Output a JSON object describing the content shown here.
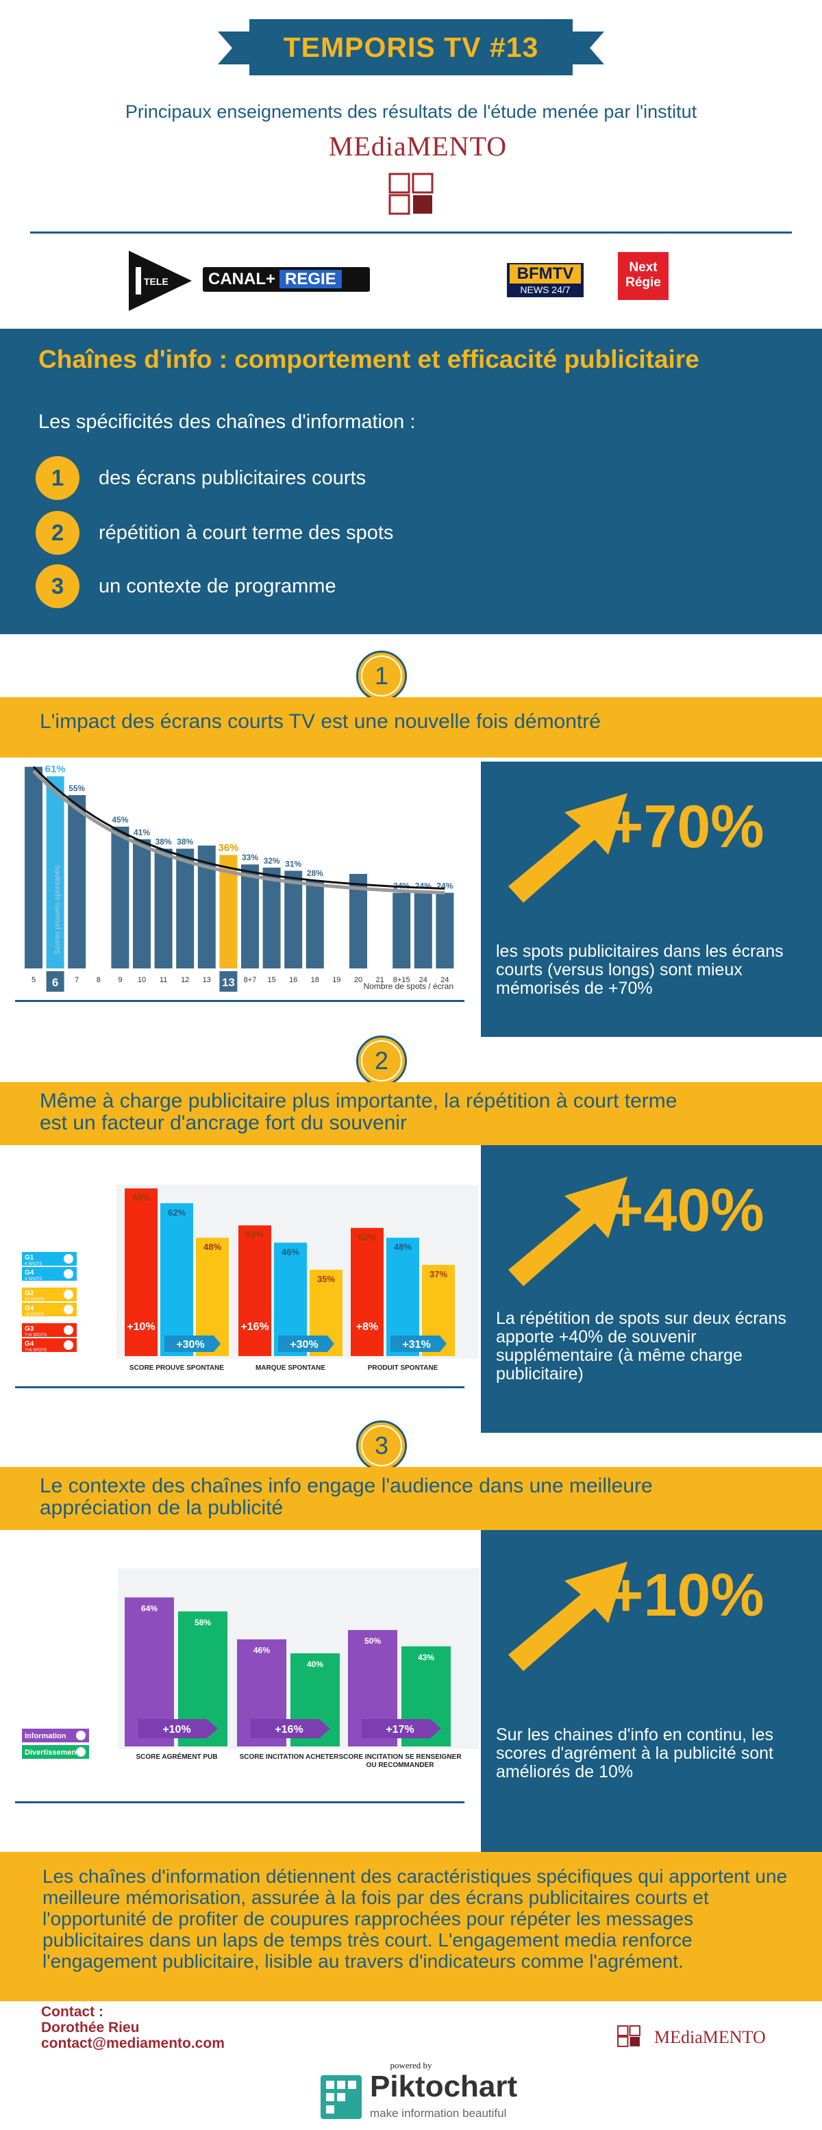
{
  "header": {
    "ribbon_title": "TEMPORIS TV #13",
    "intro": "Principaux enseignements des résultats de l'étude menée par l'institut",
    "institute_logo_text": "MEdiaMENTO"
  },
  "partner_logos": {
    "itele": "TELE",
    "canal_plus": "CANAL+",
    "canal_regie": "REGIE",
    "bfm_top": "BFMTV",
    "bfm_bottom": "NEWS 24/7",
    "next_regie": "Next Régie"
  },
  "intro_block": {
    "title": "Chaînes d'info : comportement et efficacité publicitaire",
    "subtitle": "Les spécificités des chaînes d'information :",
    "items": [
      {
        "num": "1",
        "text": "des écrans publicitaires courts"
      },
      {
        "num": "2",
        "text": "répétition à court terme des spots"
      },
      {
        "num": "3",
        "text": "un contexte de programme"
      }
    ]
  },
  "sections": [
    {
      "num": "1",
      "title": "L'impact des écrans courts TV est une nouvelle fois démontré",
      "stat": "+70%",
      "desc": "les spots publicitaires dans les écrans courts (versus longs) sont mieux mémorisés de +70%"
    },
    {
      "num": "2",
      "title_line1": "Même à charge publicitaire plus importante, la répétition à court terme",
      "title_line2": "est un facteur d'ancrage fort du souvenir",
      "stat": "+40%",
      "desc": "La répétition de spots sur deux écrans apporte +40% de souvenir supplémentaire (à même charge publicitaire)"
    },
    {
      "num": "3",
      "title_line1": "Le contexte des chaînes info engage l'audience dans une meilleure",
      "title_line2": "appréciation de la publicité",
      "stat": "+10%",
      "desc": "Sur les chaines d'info en continu, les scores d'agrément à la publicité sont améliorés de 10%"
    }
  ],
  "chart_data": [
    {
      "type": "bar",
      "ylabel": "Scores prouvés spontanés",
      "xlabel": "Nombre de spots / écran",
      "categories": [
        "5",
        "6",
        "7",
        "8",
        "9",
        "10",
        "11",
        "12",
        "13",
        "13",
        "8+7",
        "15",
        "16",
        "18",
        "19",
        "20",
        "21",
        "8+15",
        "24",
        "24"
      ],
      "values": [
        64,
        61,
        55,
        null,
        45,
        41,
        38,
        38,
        39,
        36,
        33,
        32,
        31,
        28,
        null,
        30,
        null,
        24,
        24,
        24
      ],
      "labels": [
        "64%",
        "61%",
        "55%",
        "",
        "45%",
        "41%",
        "38%",
        "38%",
        "",
        "36%",
        "33%",
        "32%",
        "31%",
        "28%",
        "",
        "",
        "",
        "24%",
        "24%",
        "24%"
      ],
      "highlighted": [
        "6",
        "13"
      ],
      "trend": "decreasing curve",
      "colors": {
        "bar": "#3b6a8d",
        "highlight_6": "#35b6e8",
        "highlight_13": "#f7b51d",
        "trend": "#111111"
      }
    },
    {
      "type": "bar",
      "categories": [
        "SCORE PROUVE SPONTANE",
        "MARQUE SPONTANE",
        "PRODUIT SPONTANE"
      ],
      "series": [
        {
          "name": "G3",
          "color": "#f32a0e",
          "values": [
            68,
            53,
            52
          ]
        },
        {
          "name": "G1",
          "color": "#16b7ef",
          "values": [
            62,
            46,
            48
          ]
        },
        {
          "name": "G2",
          "color": "#fcc214",
          "values": [
            48,
            35,
            37
          ]
        }
      ],
      "value_labels": [
        [
          "68%",
          "62%",
          "48%"
        ],
        [
          "53%",
          "46%",
          "35%"
        ],
        [
          "52%",
          "48%",
          "37%"
        ]
      ],
      "uplift_labels": {
        "vs_g1": [
          "+10%",
          "+16%",
          "+8%"
        ],
        "vs_g2": [
          "+30%",
          "+30%",
          "+31%"
        ]
      },
      "legend": [
        {
          "name": "G1",
          "sub": "4 SPOTS",
          "color": "#16b7ef"
        },
        {
          "name": "G4",
          "sub": "4 SPOTS",
          "color": "#16b7ef"
        },
        {
          "name": "G2",
          "sub": "13 SPOTS",
          "color": "#fcc214"
        },
        {
          "name": "G4",
          "sub": "13 SPOTS",
          "color": "#fcc214"
        },
        {
          "name": "G3",
          "sub": "7+6 SPOTS",
          "color": "#f32a0e"
        },
        {
          "name": "G4",
          "sub": "7+6 SPOTS",
          "color": "#f32a0e"
        }
      ]
    },
    {
      "type": "bar",
      "categories": [
        "SCORE AGRÉMENT PUB",
        "SCORE INCITATION ACHETER",
        "SCORE INCITATION SE RENSEIGNER OU RECOMMANDER"
      ],
      "series": [
        {
          "name": "Information",
          "color": "#8e4dbd",
          "values": [
            64,
            46,
            50
          ]
        },
        {
          "name": "Divertissement",
          "color": "#12b66a",
          "values": [
            58,
            40,
            43
          ]
        }
      ],
      "value_labels": [
        [
          "64%",
          "58%"
        ],
        [
          "46%",
          "40%"
        ],
        [
          "50%",
          "43%"
        ]
      ],
      "uplift_labels": [
        "+10%",
        "+16%",
        "+17%"
      ],
      "legend": [
        {
          "name": "Information",
          "color": "#8e4dbd"
        },
        {
          "name": "Divertissement",
          "color": "#12b66a"
        }
      ]
    }
  ],
  "conclusion": "Les chaînes d'information détiennent des caractéristiques spécifiques qui apportent une meilleure mémorisation, assurée à la fois par des écrans publicitaires courts et l'opportunité de profiter de coupures rapprochées pour répéter les messages publicitaires dans un laps de temps très court. L'engagement media renforce l'engagement publicitaire, lisible au travers d'indicateurs comme l'agrément.",
  "contact": {
    "label": "Contact :",
    "name": "Dorothée Rieu",
    "email": "contact@mediamento.com"
  },
  "footer": {
    "logo_text": "MEdiaMENTO",
    "powered_by": "powered by",
    "brand": "Piktochart",
    "tagline": "make information beautiful"
  }
}
